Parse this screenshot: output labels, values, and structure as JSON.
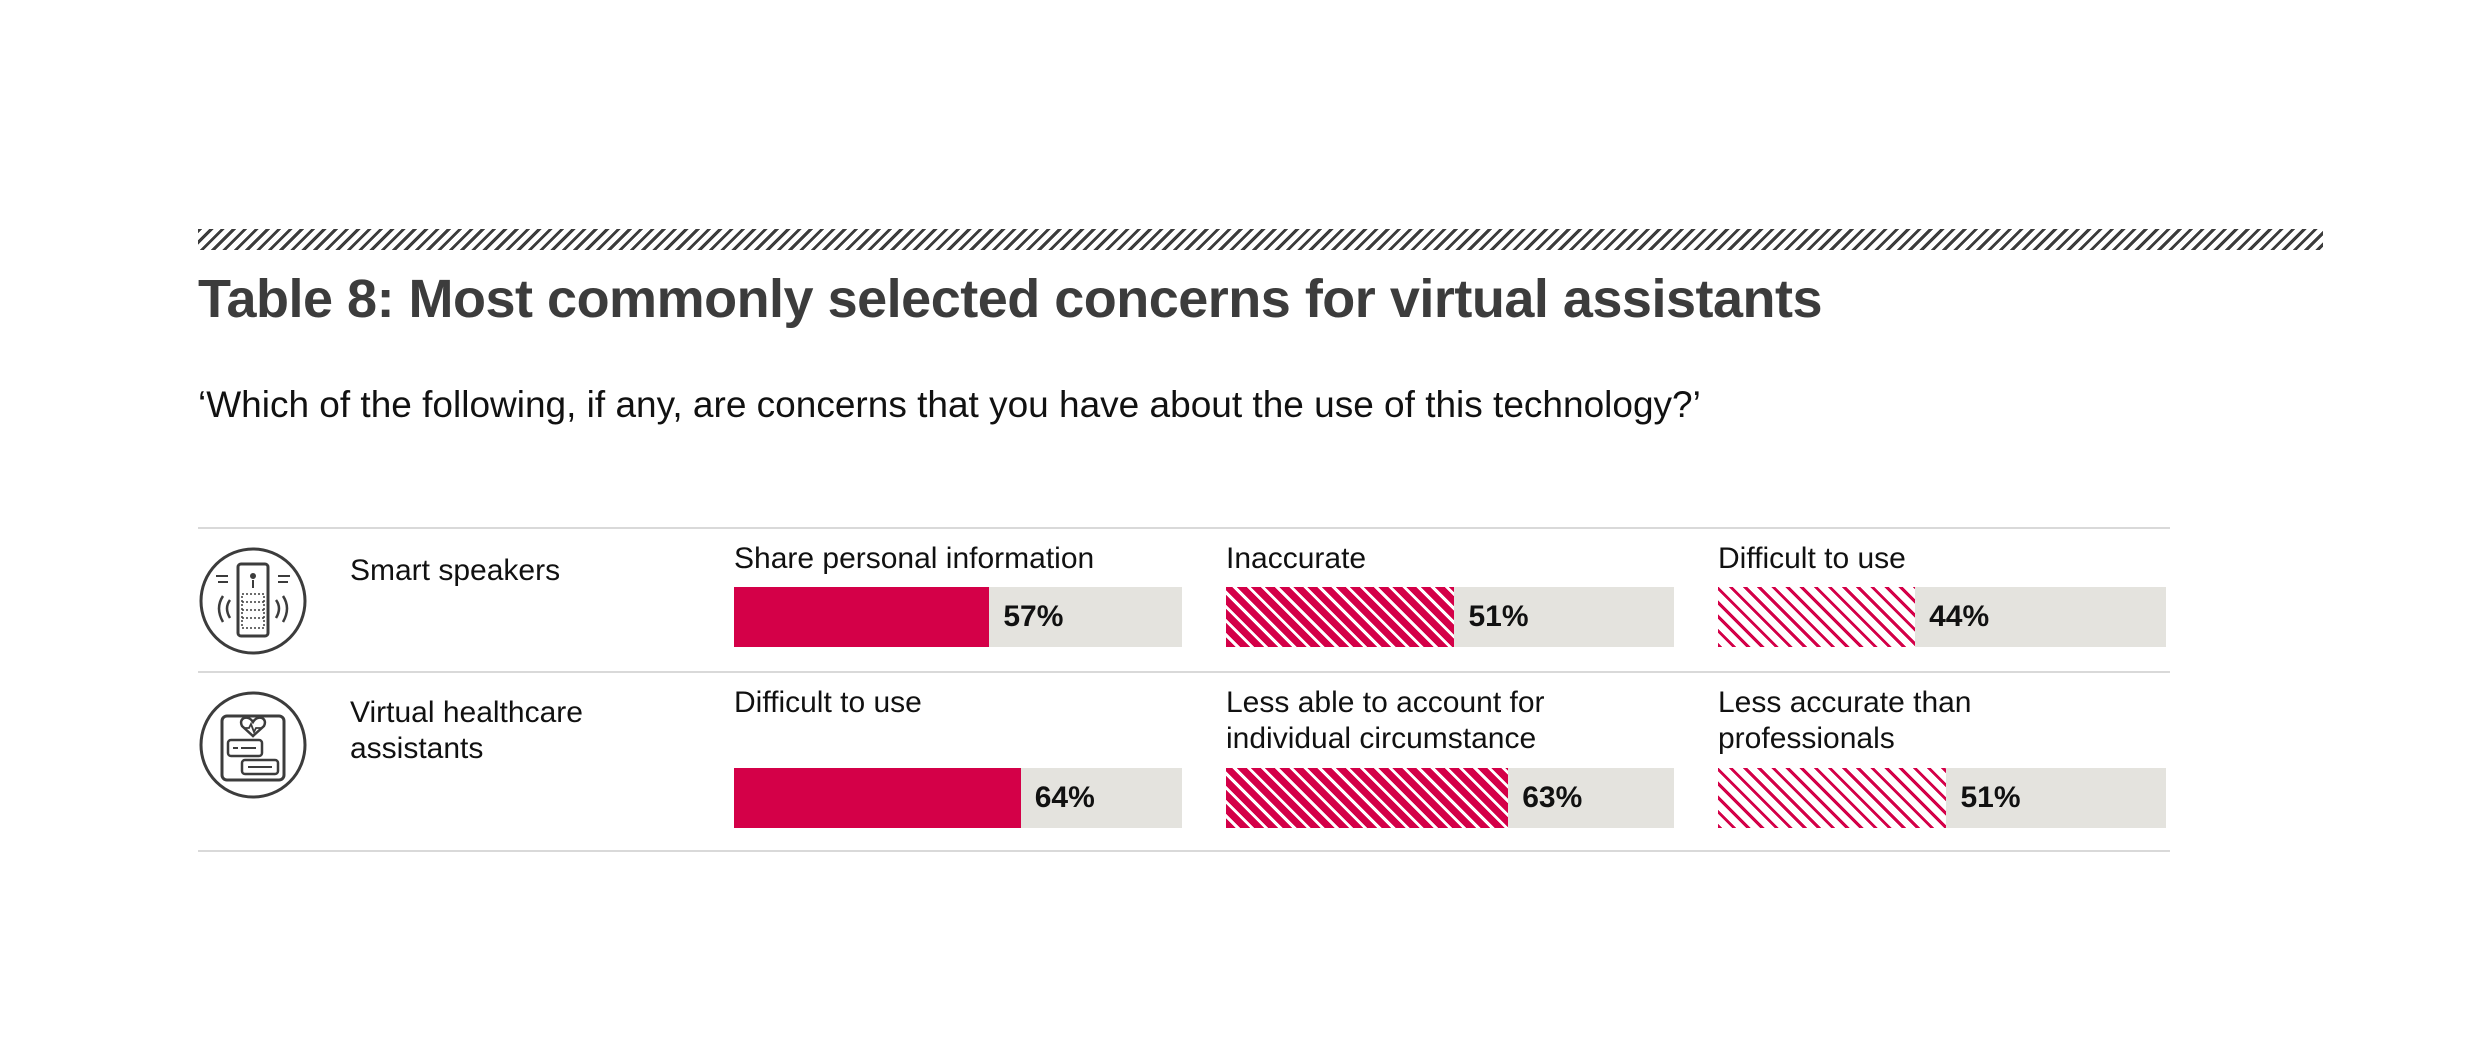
{
  "title": "Table 8: Most commonly selected concerns for virtual assistants",
  "subtitle": "‘Which of the following, if any, are concerns that you have about the use of this technology?’",
  "colors": {
    "accent": "#d40048",
    "track": "#e4e3de",
    "rule": "#3c3c3c",
    "divider": "#d9d9d9"
  },
  "chart_data": {
    "type": "bar",
    "unit": "%",
    "xlim": [
      0,
      100
    ],
    "rows": [
      {
        "label": "Smart speakers",
        "icon": "smart-speaker-icon",
        "concerns": [
          {
            "label": "Share personal information",
            "value": 57,
            "value_label": "57%",
            "pattern": "solid"
          },
          {
            "label": "Inaccurate",
            "value": 51,
            "value_label": "51%",
            "pattern": "dense-hatch"
          },
          {
            "label": "Difficult to use",
            "value": 44,
            "value_label": "44%",
            "pattern": "light-hatch"
          }
        ]
      },
      {
        "label": "Virtual healthcare assistants",
        "icon": "healthcare-assistant-icon",
        "concerns": [
          {
            "label": "Difficult to use",
            "value": 64,
            "value_label": "64%",
            "pattern": "solid"
          },
          {
            "label": "Less able to account for individual circumstance",
            "value": 63,
            "value_label": "63%",
            "pattern": "dense-hatch"
          },
          {
            "label": "Less accurate than professionals",
            "value": 51,
            "value_label": "51%",
            "pattern": "light-hatch"
          }
        ]
      }
    ]
  }
}
